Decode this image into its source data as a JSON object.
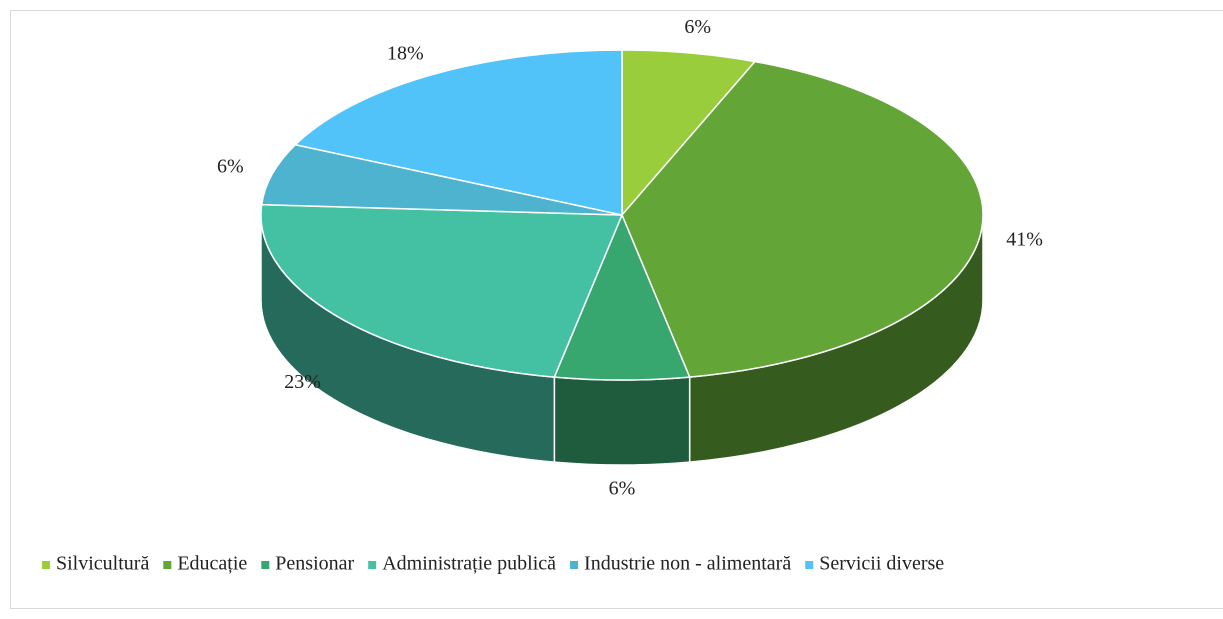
{
  "chart_data": {
    "type": "pie",
    "style": "3d",
    "categories": [
      "Silvicultură",
      "Educație",
      "Pensionar",
      "Administrație publică",
      "Industrie non - alimentară",
      "Servicii diverse"
    ],
    "values": [
      6,
      41,
      6,
      23,
      6,
      18
    ],
    "value_labels": [
      "6%",
      "41%",
      "6%",
      "23%",
      "6%",
      "18%"
    ],
    "colors": [
      "#9acd3c",
      "#63a537",
      "#37a76f",
      "#44c1a3",
      "#4eb3cf",
      "#51c3f9"
    ],
    "legend": "bottom"
  }
}
